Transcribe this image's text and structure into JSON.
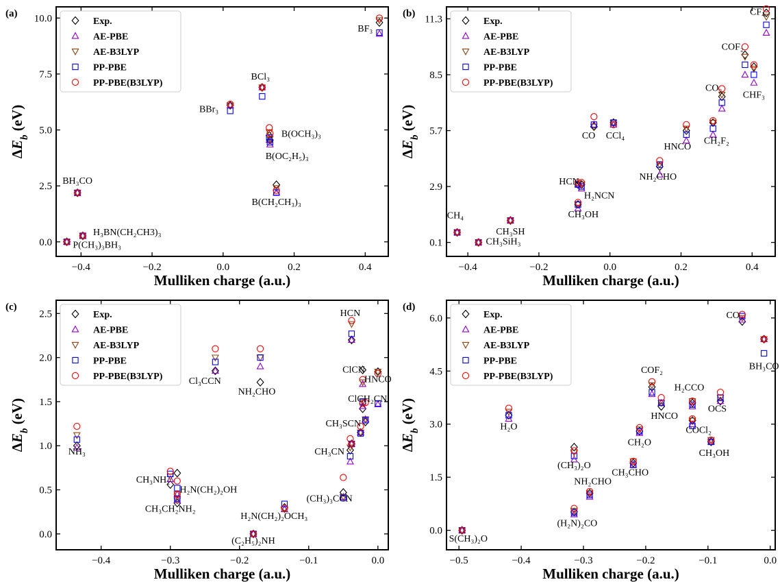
{
  "figure": {
    "marker_colors": {
      "Exp.": "#000000",
      "AE-PBE": "#9400d3",
      "AE-B3LYP": "#8b4513",
      "PP-PBE": "#0000ff",
      "PP-PBE(B3LYP)": "#ff0000"
    },
    "marker_shapes": {
      "Exp.": "diamond",
      "AE-PBE": "triangle-up",
      "AE-B3LYP": "triangle-down",
      "PP-PBE": "square",
      "PP-PBE(B3LYP)": "circle"
    }
  },
  "chart_data": [
    {
      "id": "a",
      "type": "scatter",
      "panel_label": "(a)",
      "xlabel": "Mulliken charge (a.u.)",
      "ylabel": "ΔE_b (eV)",
      "xlim": [
        -0.47,
        0.465
      ],
      "ylim": [
        -0.65,
        10.5
      ],
      "xticks": [
        -0.4,
        -0.2,
        0.0,
        0.2,
        0.4
      ],
      "xtick_labels": [
        "−0.4",
        "−0.2",
        "0.0",
        "0.2",
        "0.4"
      ],
      "yticks": [
        0.0,
        2.5,
        5.0,
        7.5,
        10.0
      ],
      "ytick_labels": [
        "0.0",
        "2.5",
        "5.0",
        "7.5",
        "10.0"
      ],
      "legend": [
        "Exp.",
        "AE-PBE",
        "AE-B3LYP",
        "PP-PBE",
        "PP-PBE(B3LYP)"
      ],
      "legend_position": "top-left",
      "grid": false,
      "points": [
        {
          "x": -0.44,
          "values": [
            0.0,
            0.0,
            0.0,
            0.0,
            0.0
          ]
        },
        {
          "x": -0.41,
          "values": [
            2.19,
            2.19,
            2.19,
            2.19,
            2.19
          ]
        },
        {
          "x": -0.395,
          "values": [
            0.27,
            0.27,
            0.27,
            0.27,
            0.27
          ]
        },
        {
          "x": 0.02,
          "values": [
            6.1,
            6.1,
            6.1,
            5.85,
            6.15
          ]
        },
        {
          "x": 0.11,
          "values": [
            6.9,
            6.9,
            6.9,
            6.5,
            6.9
          ]
        },
        {
          "x": 0.13,
          "values": [
            4.75,
            4.55,
            4.9,
            4.65,
            5.1
          ]
        },
        {
          "x": 0.132,
          "values": [
            4.55,
            4.35,
            4.6,
            4.45,
            4.85
          ]
        },
        {
          "x": 0.15,
          "values": [
            2.55,
            2.2,
            2.4,
            2.2,
            2.3
          ]
        },
        {
          "x": 0.44,
          "values": [
            9.8,
            9.3,
            9.9,
            9.35,
            10.0
          ]
        }
      ],
      "annotations": [
        {
          "text": "BF₃",
          "x": 0.4,
          "y": 9.4
        },
        {
          "text": "BCl₃",
          "x": 0.105,
          "y": 7.25
        },
        {
          "text": "BBr₃",
          "x": -0.04,
          "y": 5.8
        },
        {
          "text": "B(OCH₃)₃",
          "x": 0.22,
          "y": 4.7
        },
        {
          "text": "B(OC₂H₅)₃",
          "x": 0.18,
          "y": 3.7
        },
        {
          "text": "BH₃CO",
          "x": -0.41,
          "y": 2.6
        },
        {
          "text": "B(CH₂CH₃)₃",
          "x": 0.15,
          "y": 1.65
        },
        {
          "text": "H₃BN(CH₂CH3)₃",
          "x": -0.27,
          "y": 0.3
        },
        {
          "text": "P(CH₃)₃BH₃",
          "x": -0.355,
          "y": -0.27
        }
      ]
    },
    {
      "id": "b",
      "type": "scatter",
      "panel_label": "(b)",
      "xlabel": "Mulliken charge (a.u.)",
      "ylabel": "ΔE_b (eV)",
      "xlim": [
        -0.46,
        0.465
      ],
      "ylim": [
        -0.6,
        11.9
      ],
      "xticks": [
        -0.4,
        -0.2,
        0.0,
        0.2,
        0.4
      ],
      "xtick_labels": [
        "−0.4",
        "−0.2",
        "0.0",
        "0.2",
        "0.4"
      ],
      "yticks": [
        0.1,
        2.9,
        5.7,
        8.5,
        11.3
      ],
      "ytick_labels": [
        "0.1",
        "2.9",
        "5.7",
        "8.5",
        "11.3"
      ],
      "legend": [
        "Exp.",
        "AE-PBE",
        "AE-B3LYP",
        "PP-PBE",
        "PP-PBE(B3LYP)"
      ],
      "legend_position": "top-left",
      "grid": false,
      "points": [
        {
          "x": -0.43,
          "values": [
            0.6,
            0.6,
            0.6,
            0.6,
            0.6
          ]
        },
        {
          "x": -0.37,
          "values": [
            0.1,
            0.1,
            0.1,
            0.1,
            0.1
          ]
        },
        {
          "x": -0.28,
          "values": [
            1.2,
            1.2,
            1.2,
            1.2,
            1.2
          ]
        },
        {
          "x": -0.09,
          "values": [
            2.0,
            1.8,
            2.0,
            2.0,
            2.1
          ]
        },
        {
          "x": -0.09,
          "values": [
            3.0,
            3.0,
            3.0,
            3.0,
            3.1
          ]
        },
        {
          "x": -0.08,
          "values": [
            3.0,
            2.8,
            3.0,
            2.9,
            3.1
          ]
        },
        {
          "x": -0.045,
          "values": [
            5.9,
            6.0,
            5.9,
            6.0,
            6.4
          ]
        },
        {
          "x": 0.01,
          "values": [
            6.1,
            6.0,
            6.1,
            6.1,
            6.0
          ]
        },
        {
          "x": 0.14,
          "values": [
            3.9,
            3.5,
            4.0,
            4.0,
            4.2
          ]
        },
        {
          "x": 0.215,
          "values": [
            5.7,
            5.2,
            5.8,
            5.5,
            6.0
          ]
        },
        {
          "x": 0.29,
          "values": [
            6.1,
            5.5,
            6.1,
            5.8,
            6.2
          ]
        },
        {
          "x": 0.315,
          "values": [
            7.4,
            6.8,
            7.5,
            7.1,
            7.8
          ]
        },
        {
          "x": 0.38,
          "values": [
            9.5,
            8.5,
            9.4,
            9.0,
            9.9
          ]
        },
        {
          "x": 0.405,
          "values": [
            8.9,
            8.1,
            8.8,
            8.5,
            9.0
          ]
        },
        {
          "x": 0.44,
          "values": [
            11.6,
            10.6,
            11.4,
            11.0,
            11.8
          ]
        }
      ],
      "annotations": [
        {
          "text": "CF₄",
          "x": 0.415,
          "y": 11.5
        },
        {
          "text": "COF₂",
          "x": 0.345,
          "y": 9.75
        },
        {
          "text": "CHF₃",
          "x": 0.405,
          "y": 7.35
        },
        {
          "text": "CO₂",
          "x": 0.292,
          "y": 7.7
        },
        {
          "text": "CO",
          "x": -0.06,
          "y": 5.3
        },
        {
          "text": "CCl₄",
          "x": 0.015,
          "y": 5.3
        },
        {
          "text": "CH₂F₂",
          "x": 0.3,
          "y": 5.05
        },
        {
          "text": "HNCO",
          "x": 0.19,
          "y": 4.75
        },
        {
          "text": "NH₂CHO",
          "x": 0.135,
          "y": 3.25
        },
        {
          "text": "HCN",
          "x": -0.115,
          "y": 3.0
        },
        {
          "text": "H₂NCN",
          "x": -0.03,
          "y": 2.3
        },
        {
          "text": "CH₃OH",
          "x": -0.075,
          "y": 1.35
        },
        {
          "text": "CH₄",
          "x": -0.435,
          "y": 1.3
        },
        {
          "text": "CH₃SH",
          "x": -0.28,
          "y": 0.5
        },
        {
          "text": "CH₃SiH₃",
          "x": -0.3,
          "y": 0.0
        }
      ]
    },
    {
      "id": "c",
      "type": "scatter",
      "panel_label": "(c)",
      "xlabel": "Mulliken charge (a.u.)",
      "ylabel": "ΔE_b (eV)",
      "xlim": [
        -0.465,
        0.015
      ],
      "ylim": [
        -0.18,
        2.65
      ],
      "xticks": [
        -0.4,
        -0.3,
        -0.2,
        -0.1,
        0.0
      ],
      "xtick_labels": [
        "−0.4",
        "−0.3",
        "−0.2",
        "−0.1",
        "0.0"
      ],
      "yticks": [
        0.0,
        0.5,
        1.0,
        1.5,
        2.0,
        2.5
      ],
      "ytick_labels": [
        "0.0",
        "0.5",
        "1.0",
        "1.5",
        "2.0",
        "2.5"
      ],
      "legend": [
        "Exp.",
        "AE-PBE",
        "AE-B3LYP",
        "PP-PBE",
        "PP-PBE(B3LYP)"
      ],
      "legend_position": "top-left",
      "grid": false,
      "points": [
        {
          "x": -0.435,
          "values": [
            1.0,
            0.98,
            1.12,
            1.07,
            1.22
          ]
        },
        {
          "x": -0.3,
          "values": [
            0.56,
            0.62,
            0.65,
            0.68,
            0.71
          ]
        },
        {
          "x": -0.29,
          "values": [
            0.69,
            0.45,
            0.45,
            0.52,
            0.6
          ]
        },
        {
          "x": -0.29,
          "values": [
            0.35,
            0.38,
            0.38,
            0.4,
            0.45
          ]
        },
        {
          "x": -0.235,
          "values": [
            1.85,
            1.85,
            2.0,
            1.95,
            2.1
          ]
        },
        {
          "x": -0.18,
          "values": [
            0.0,
            0.0,
            0.0,
            0.0,
            0.0
          ]
        },
        {
          "x": -0.17,
          "values": [
            1.72,
            1.9,
            2.0,
            2.0,
            2.1
          ]
        },
        {
          "x": -0.135,
          "values": [
            0.3,
            0.28,
            0.28,
            0.34,
            0.29
          ]
        },
        {
          "x": -0.05,
          "values": [
            0.47,
            0.42,
            0.42,
            0.41,
            0.64
          ]
        },
        {
          "x": -0.04,
          "values": [
            0.95,
            0.82,
            0.98,
            0.88,
            1.08
          ]
        },
        {
          "x": -0.038,
          "values": [
            1.02,
            1.02,
            1.02,
            1.02,
            1.02
          ]
        },
        {
          "x": -0.038,
          "values": [
            2.2,
            2.2,
            2.38,
            2.27,
            2.42
          ]
        },
        {
          "x": -0.025,
          "values": [
            1.15,
            1.15,
            1.15,
            1.14,
            1.22
          ]
        },
        {
          "x": -0.022,
          "values": [
            1.42,
            1.45,
            1.5,
            1.5,
            1.75
          ]
        },
        {
          "x": -0.022,
          "values": [
            1.86,
            1.7,
            1.72,
            1.5,
            1.48
          ]
        },
        {
          "x": -0.018,
          "values": [
            1.27,
            1.3,
            1.3,
            1.29,
            1.49
          ]
        },
        {
          "x": 0.0,
          "values": [
            1.84,
            1.47,
            1.84,
            1.48,
            1.82
          ]
        }
      ],
      "annotations": [
        {
          "text": "HCN",
          "x": -0.04,
          "y": 2.47
        },
        {
          "text": "ClCN",
          "x": -0.035,
          "y": 1.83
        },
        {
          "text": "HNCO",
          "x": 0.0,
          "y": 1.72
        },
        {
          "text": "ClCH₂CN",
          "x": -0.015,
          "y": 1.5
        },
        {
          "text": "CH₃SCN",
          "x": -0.05,
          "y": 1.22
        },
        {
          "text": "CH₃CN",
          "x": -0.07,
          "y": 0.9
        },
        {
          "text": "(CH₃)₃CCN",
          "x": -0.07,
          "y": 0.37
        },
        {
          "text": "Cl₃CCN",
          "x": -0.25,
          "y": 1.7
        },
        {
          "text": "NH₂CHO",
          "x": -0.175,
          "y": 1.58
        },
        {
          "text": "NH₃",
          "x": -0.435,
          "y": 0.9
        },
        {
          "text": "CH₃NH₂",
          "x": -0.325,
          "y": 0.58
        },
        {
          "text": "H₂N(CH₂)₂OH",
          "x": -0.245,
          "y": 0.47
        },
        {
          "text": "CH₃CH₂NH₂",
          "x": -0.3,
          "y": 0.25
        },
        {
          "text": "H₂N(CH₂)₂OCH₃",
          "x": -0.15,
          "y": 0.17
        },
        {
          "text": "(C₂H₅)₂NH",
          "x": -0.18,
          "y": -0.11
        }
      ]
    },
    {
      "id": "d",
      "type": "scatter",
      "panel_label": "(d)",
      "xlabel": "Mulliken charge (a.u.)",
      "ylabel": "ΔE_b (eV)",
      "xlim": [
        -0.52,
        0.008
      ],
      "ylim": [
        -0.55,
        6.5
      ],
      "xticks": [
        -0.5,
        -0.4,
        -0.3,
        -0.2,
        -0.1,
        0.0
      ],
      "xtick_labels": [
        "−0.5",
        "−0.4",
        "−0.3",
        "−0.2",
        "−0.1",
        "0.0"
      ],
      "yticks": [
        0.0,
        1.5,
        3.0,
        4.5,
        6.0
      ],
      "ytick_labels": [
        "0.0",
        "1.5",
        "3.0",
        "4.5",
        "6.0"
      ],
      "legend": [
        "Exp.",
        "AE-PBE",
        "AE-B3LYP",
        "PP-PBE",
        "PP-PBE(B3LYP)"
      ],
      "legend_position": "top-left",
      "grid": false,
      "points": [
        {
          "x": -0.495,
          "values": [
            0.0,
            0.0,
            0.0,
            0.0,
            0.0
          ]
        },
        {
          "x": -0.42,
          "values": [
            3.25,
            3.15,
            3.35,
            3.25,
            3.45
          ]
        },
        {
          "x": -0.315,
          "values": [
            2.35,
            2.0,
            2.2,
            2.1,
            2.25
          ]
        },
        {
          "x": -0.315,
          "values": [
            0.52,
            0.45,
            0.55,
            0.5,
            0.62
          ]
        },
        {
          "x": -0.29,
          "values": [
            1.05,
            0.95,
            1.05,
            1.0,
            1.1
          ]
        },
        {
          "x": -0.22,
          "values": [
            1.9,
            1.85,
            1.95,
            1.85,
            1.95
          ]
        },
        {
          "x": -0.21,
          "values": [
            2.8,
            2.75,
            2.85,
            2.8,
            2.9
          ]
        },
        {
          "x": -0.19,
          "values": [
            4.05,
            3.85,
            4.1,
            3.9,
            4.2
          ]
        },
        {
          "x": -0.175,
          "values": [
            3.5,
            3.6,
            3.6,
            3.6,
            3.75
          ]
        },
        {
          "x": -0.125,
          "values": [
            3.6,
            3.5,
            3.65,
            3.55,
            3.65
          ]
        },
        {
          "x": -0.125,
          "values": [
            3.1,
            3.0,
            3.1,
            2.95,
            3.15
          ]
        },
        {
          "x": -0.095,
          "values": [
            2.5,
            2.5,
            2.55,
            2.5,
            2.55
          ]
        },
        {
          "x": -0.08,
          "values": [
            3.65,
            3.65,
            3.75,
            3.75,
            3.9
          ]
        },
        {
          "x": -0.045,
          "values": [
            5.9,
            5.95,
            6.0,
            6.05,
            6.1
          ]
        },
        {
          "x": -0.01,
          "values": [
            5.4,
            5.4,
            5.4,
            5.0,
            5.4
          ]
        }
      ],
      "annotations": [
        {
          "text": "CO",
          "x": -0.06,
          "y": 6.0
        },
        {
          "text": "BH₃CO",
          "x": -0.01,
          "y": 4.55
        },
        {
          "text": "COF₂",
          "x": -0.19,
          "y": 4.45
        },
        {
          "text": "H₂CCO",
          "x": -0.13,
          "y": 3.95
        },
        {
          "text": "OCS",
          "x": -0.085,
          "y": 3.35
        },
        {
          "text": "HNCO",
          "x": -0.17,
          "y": 3.15
        },
        {
          "text": "COCl₂",
          "x": -0.115,
          "y": 2.75
        },
        {
          "text": "CH₃OH",
          "x": -0.09,
          "y": 2.1
        },
        {
          "text": "H₂O",
          "x": -0.42,
          "y": 2.85
        },
        {
          "text": "CH₂O",
          "x": -0.21,
          "y": 2.4
        },
        {
          "text": "(CH₃)₂O",
          "x": -0.315,
          "y": 1.75
        },
        {
          "text": "CH₃CHO",
          "x": -0.225,
          "y": 1.55
        },
        {
          "text": "NH₂CHO",
          "x": -0.285,
          "y": 1.3
        },
        {
          "text": "(H₂N)₂CO",
          "x": -0.31,
          "y": 0.12
        },
        {
          "text": "S(CH₃)₂O",
          "x": -0.485,
          "y": -0.32
        }
      ]
    }
  ]
}
